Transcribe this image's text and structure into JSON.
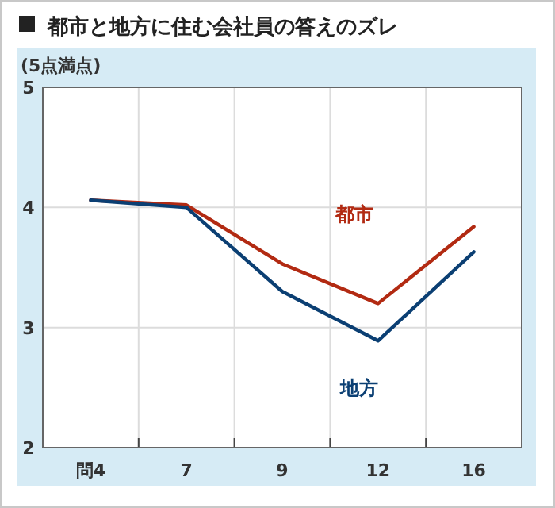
{
  "chart_data": {
    "type": "line",
    "title": "都市と地方に住む会社員の答えのズレ",
    "ylabel": "(5点満点)",
    "categories": [
      "問4",
      "7",
      "9",
      "12",
      "16"
    ],
    "ylim": [
      2,
      5
    ],
    "yticks": [
      2,
      3,
      4,
      5
    ],
    "grid": true,
    "legend": false,
    "marker": "none",
    "line_style": "solid",
    "series": [
      {
        "name": "都市",
        "color": "#b22a12",
        "values": [
          4.06,
          4.02,
          3.53,
          3.2,
          3.84
        ]
      },
      {
        "name": "地方",
        "color": "#0b3f73",
        "values": [
          4.06,
          4.0,
          3.3,
          2.89,
          3.63
        ]
      }
    ]
  }
}
